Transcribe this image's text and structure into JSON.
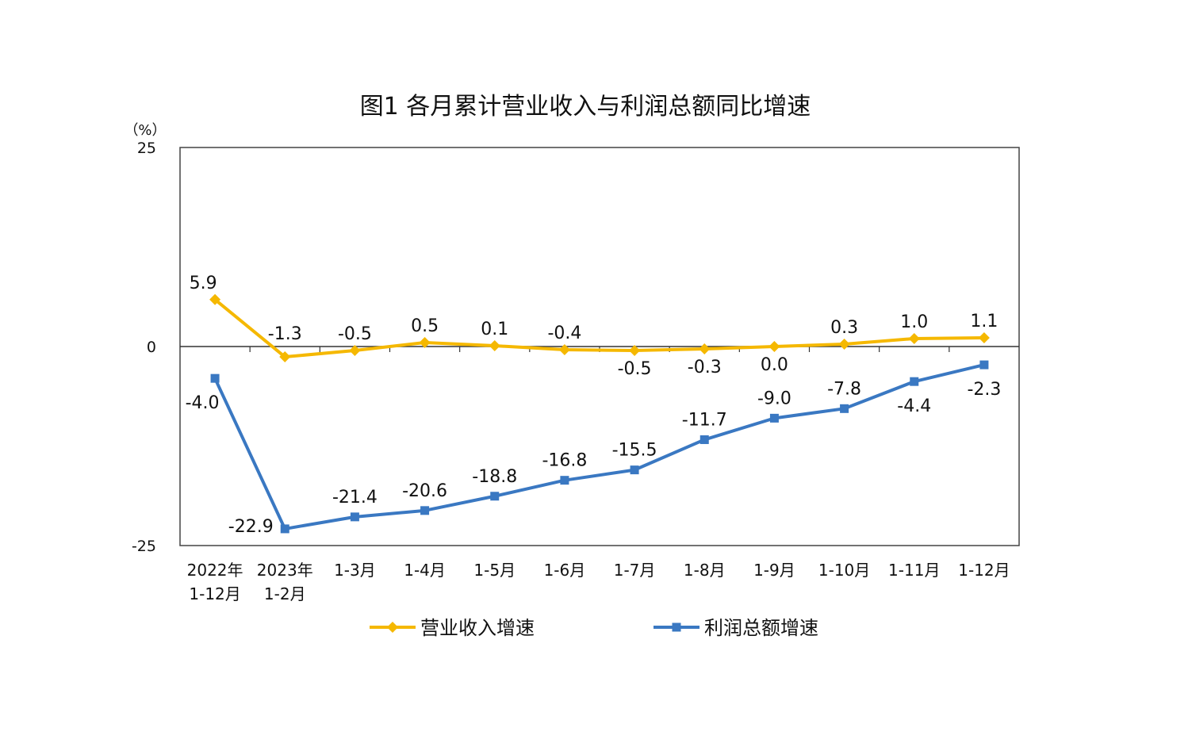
{
  "chart_data": {
    "type": "line",
    "title": "图1  各月累计营业收入与利润总额同比增速",
    "ylabel": "（%）",
    "ylim": [
      -25,
      25
    ],
    "yticks": [
      "25",
      "0",
      "-25"
    ],
    "categories": [
      [
        "2022年",
        "1-12月"
      ],
      [
        "2023年",
        "1-2月"
      ],
      [
        "1-3月"
      ],
      [
        "1-4月"
      ],
      [
        "1-5月"
      ],
      [
        "1-6月"
      ],
      [
        "1-7月"
      ],
      [
        "1-8月"
      ],
      [
        "1-9月"
      ],
      [
        "1-10月"
      ],
      [
        "1-11月"
      ],
      [
        "1-12月"
      ]
    ],
    "series": [
      {
        "name": "营业收入增速",
        "color": "#F5B800",
        "marker": "diamond",
        "values": [
          5.9,
          -1.3,
          -0.5,
          0.5,
          0.1,
          -0.4,
          -0.5,
          -0.3,
          0.0,
          0.3,
          1.0,
          1.1
        ],
        "labels": [
          "5.9",
          "-1.3",
          "-0.5",
          "0.5",
          "0.1",
          "-0.4",
          "-0.5",
          "-0.3",
          "0.0",
          "0.3",
          "1.0",
          "1.1"
        ]
      },
      {
        "name": "利润总额增速",
        "color": "#3A78C2",
        "marker": "square",
        "values": [
          -4.0,
          -22.9,
          -21.4,
          -20.6,
          -18.8,
          -16.8,
          -15.5,
          -11.7,
          -9.0,
          -7.8,
          -4.4,
          -2.3
        ],
        "labels": [
          "-4.0",
          "-22.9",
          "-21.4",
          "-20.6",
          "-18.8",
          "-16.8",
          "-15.5",
          "-11.7",
          "-9.0",
          "-7.8",
          "-4.4",
          "-2.3"
        ]
      }
    ],
    "grid": false,
    "legend_position": "bottom"
  }
}
